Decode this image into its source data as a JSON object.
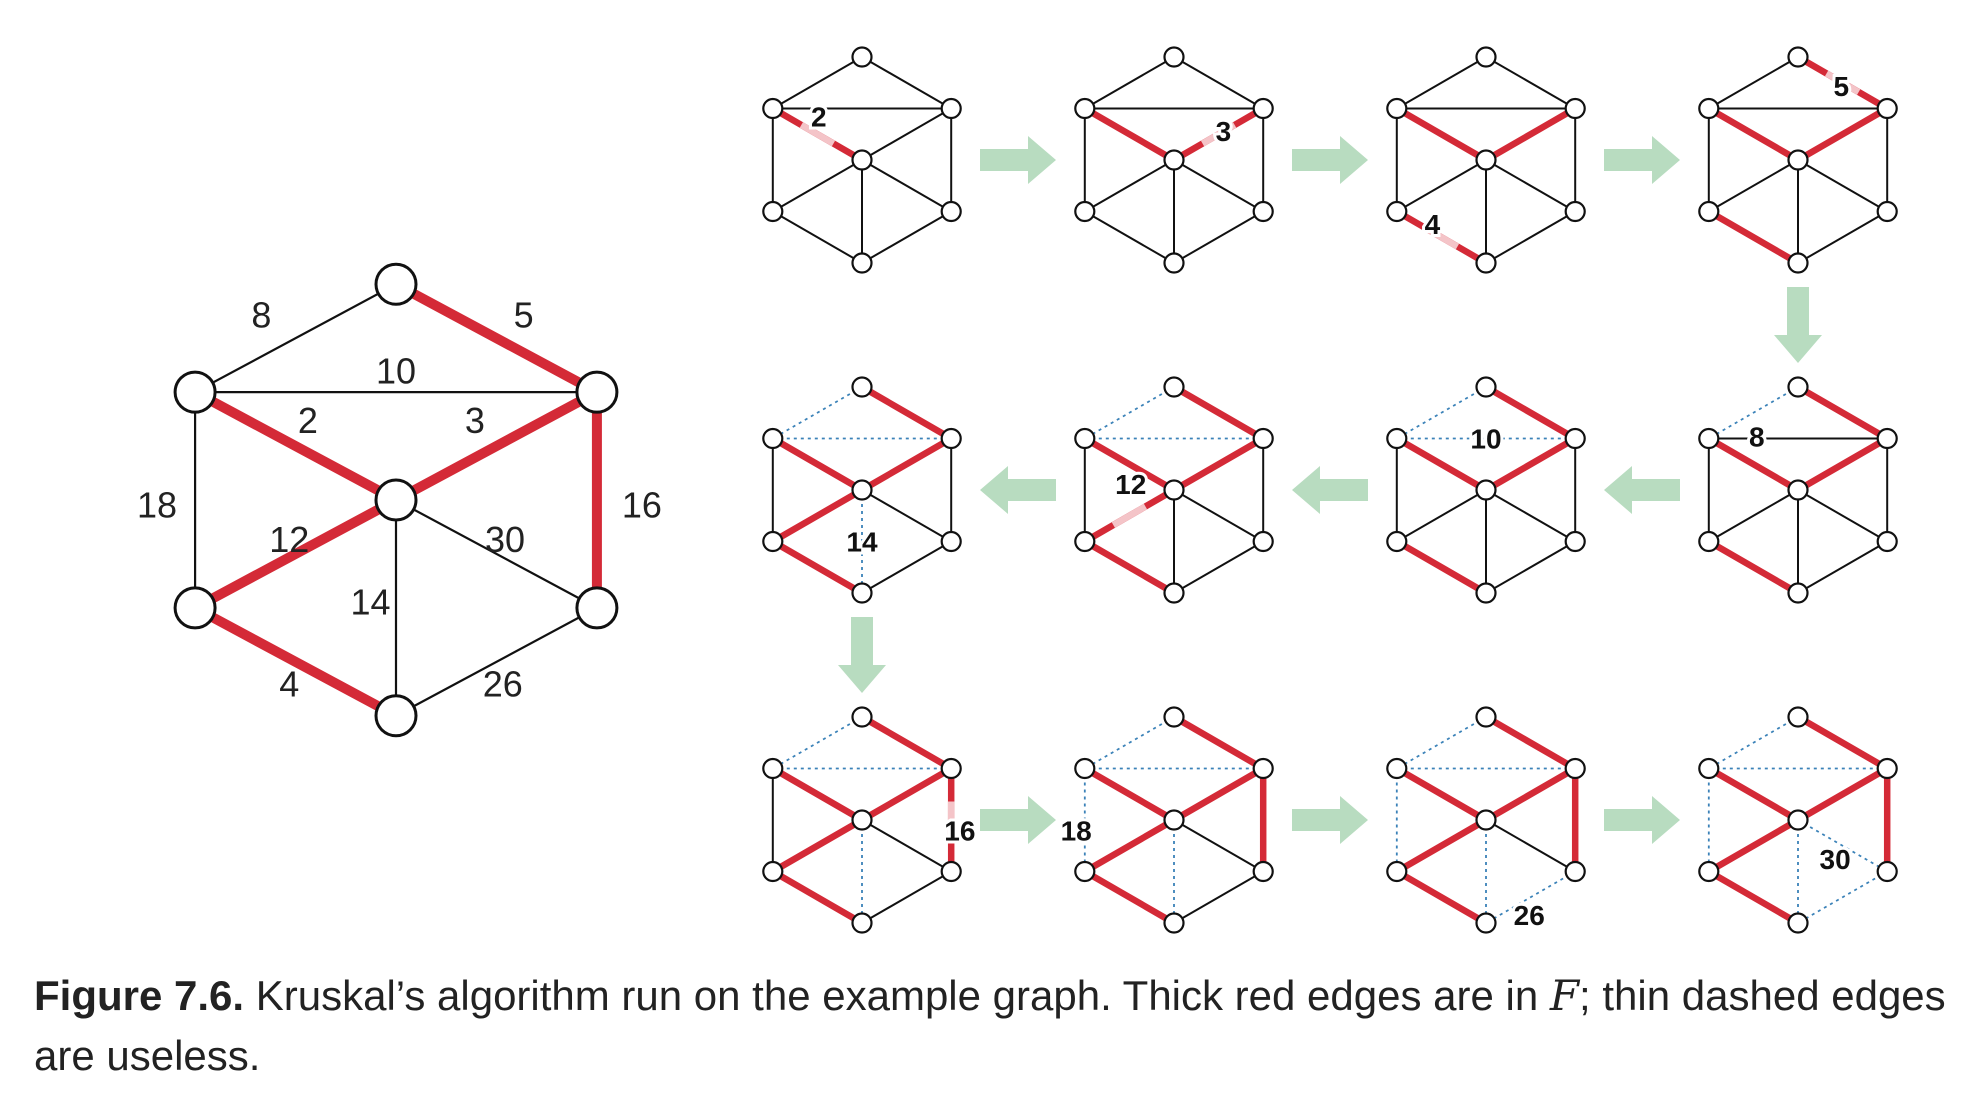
{
  "figure": {
    "colors": {
      "forest_edge": "#d42a37",
      "forest_edge_highlight": "#f4c4c8",
      "useless_edge": "#3b82b8",
      "plain_edge": "#111111",
      "arrow": "#b8dcc0",
      "node_fill": "#ffffff",
      "node_stroke": "#111111"
    },
    "vertices": [
      "a",
      "b",
      "c",
      "d",
      "e",
      "f",
      "g"
    ],
    "edges": [
      {
        "id": "ab",
        "u": "a",
        "v": "b",
        "weight": "8"
      },
      {
        "id": "ac",
        "u": "a",
        "v": "c",
        "weight": "5"
      },
      {
        "id": "bc",
        "u": "b",
        "v": "c",
        "weight": "10"
      },
      {
        "id": "bd",
        "u": "b",
        "v": "d",
        "weight": "2"
      },
      {
        "id": "cd",
        "u": "c",
        "v": "d",
        "weight": "3"
      },
      {
        "id": "be",
        "u": "b",
        "v": "e",
        "weight": "18"
      },
      {
        "id": "cf",
        "u": "c",
        "v": "f",
        "weight": "16"
      },
      {
        "id": "de",
        "u": "d",
        "v": "e",
        "weight": "12"
      },
      {
        "id": "df",
        "u": "d",
        "v": "f",
        "weight": "30"
      },
      {
        "id": "dg",
        "u": "d",
        "v": "g",
        "weight": "14"
      },
      {
        "id": "eg",
        "u": "e",
        "v": "g",
        "weight": "4"
      },
      {
        "id": "fg",
        "u": "f",
        "v": "g",
        "weight": "26"
      }
    ],
    "main_graph": {
      "forest": [
        "ac",
        "bd",
        "cd",
        "cf",
        "de",
        "eg"
      ]
    },
    "steps": [
      {
        "edge": "bd",
        "label": "2",
        "forest": [],
        "useless": []
      },
      {
        "edge": "cd",
        "label": "3",
        "forest": [
          "bd"
        ],
        "useless": []
      },
      {
        "edge": "eg",
        "label": "4",
        "forest": [
          "bd",
          "cd"
        ],
        "useless": []
      },
      {
        "edge": "ac",
        "label": "5",
        "forest": [
          "bd",
          "cd",
          "eg"
        ],
        "useless": []
      },
      {
        "edge": "ab",
        "label": "8",
        "forest": [
          "bd",
          "cd",
          "eg",
          "ac"
        ],
        "useless": []
      },
      {
        "edge": "bc",
        "label": "10",
        "forest": [
          "bd",
          "cd",
          "eg",
          "ac"
        ],
        "useless": [
          "ab"
        ]
      },
      {
        "edge": "de",
        "label": "12",
        "forest": [
          "bd",
          "cd",
          "eg",
          "ac"
        ],
        "useless": [
          "ab",
          "bc"
        ]
      },
      {
        "edge": "dg",
        "label": "14",
        "forest": [
          "bd",
          "cd",
          "eg",
          "ac",
          "de"
        ],
        "useless": [
          "ab",
          "bc"
        ]
      },
      {
        "edge": "cf",
        "label": "16",
        "forest": [
          "bd",
          "cd",
          "eg",
          "ac",
          "de"
        ],
        "useless": [
          "ab",
          "bc",
          "dg"
        ]
      },
      {
        "edge": "be",
        "label": "18",
        "forest": [
          "bd",
          "cd",
          "eg",
          "ac",
          "de",
          "cf"
        ],
        "useless": [
          "ab",
          "bc",
          "dg"
        ]
      },
      {
        "edge": "fg",
        "label": "26",
        "forest": [
          "bd",
          "cd",
          "eg",
          "ac",
          "de",
          "cf"
        ],
        "useless": [
          "ab",
          "bc",
          "dg",
          "be"
        ]
      },
      {
        "edge": "df",
        "label": "30",
        "forest": [
          "bd",
          "cd",
          "eg",
          "ac",
          "de",
          "cf"
        ],
        "useless": [
          "ab",
          "bc",
          "dg",
          "be",
          "fg"
        ]
      }
    ],
    "arrows": [
      {
        "from": 0,
        "to": 1,
        "dir": "right"
      },
      {
        "from": 1,
        "to": 2,
        "dir": "right"
      },
      {
        "from": 2,
        "to": 3,
        "dir": "right"
      },
      {
        "from": 3,
        "to": 4,
        "dir": "down"
      },
      {
        "from": 4,
        "to": 5,
        "dir": "left"
      },
      {
        "from": 5,
        "to": 6,
        "dir": "left"
      },
      {
        "from": 6,
        "to": 7,
        "dir": "left"
      },
      {
        "from": 7,
        "to": 8,
        "dir": "down"
      },
      {
        "from": 8,
        "to": 9,
        "dir": "right"
      },
      {
        "from": 9,
        "to": 10,
        "dir": "right"
      },
      {
        "from": 10,
        "to": 11,
        "dir": "right"
      }
    ]
  },
  "caption": {
    "label": "Figure 7.6.",
    "text_before": " Kruskal’s algorithm run on the example graph. Thick red edges are in ",
    "math": "F",
    "text_after": "; thin dashed edges are useless."
  }
}
